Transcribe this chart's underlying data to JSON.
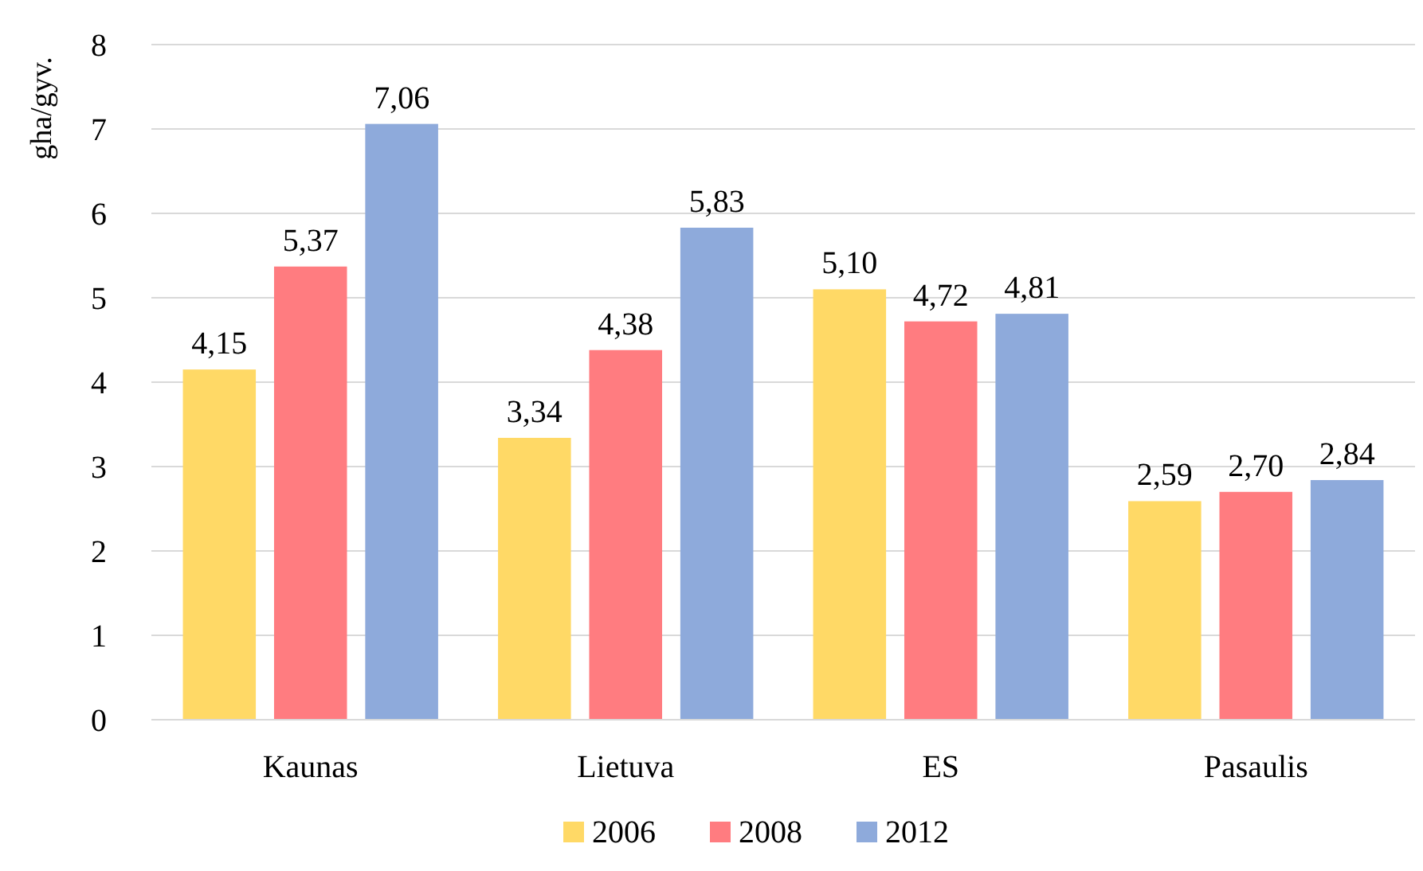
{
  "chart_data": {
    "type": "bar",
    "ylabel": "gha/gyv.",
    "categories": [
      "Kaunas",
      "Lietuva",
      "ES",
      "Pasaulis"
    ],
    "series": [
      {
        "name": "2006",
        "color": "#ffd966",
        "values": [
          4.15,
          3.34,
          5.1,
          2.59
        ],
        "value_labels": [
          "4,15",
          "3,34",
          "5,10",
          "2,59"
        ]
      },
      {
        "name": "2008",
        "color": "#ff7c80",
        "values": [
          5.37,
          4.38,
          4.72,
          2.7
        ],
        "value_labels": [
          "5,37",
          "4,38",
          "4,72",
          "2,70"
        ]
      },
      {
        "name": "2012",
        "color": "#8eaadb",
        "values": [
          7.06,
          5.83,
          4.81,
          2.84
        ],
        "value_labels": [
          "7,06",
          "5,83",
          "4,81",
          "2,84"
        ]
      }
    ],
    "ylim": [
      0,
      8
    ],
    "yticks": [
      0,
      1,
      2,
      3,
      4,
      5,
      6,
      7,
      8
    ],
    "grid": "y",
    "legend": "bottom"
  }
}
